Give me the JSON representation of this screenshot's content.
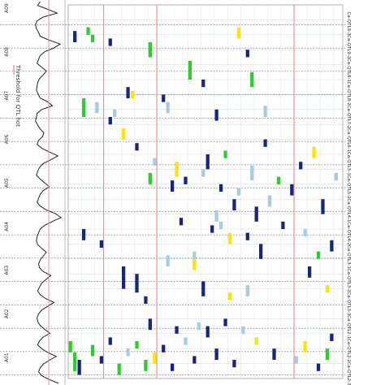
{
  "chart_data": {
    "type": "heatmap",
    "title": "",
    "legend": {
      "label": "Threshold for QTL hot",
      "color": "#e88a8a"
    },
    "chromosomes": [
      "A01",
      "A02",
      "A03",
      "A04",
      "A05",
      "A06",
      "A07",
      "A08",
      "A09"
    ],
    "qtl_clusters": [
      "Ca-QTL9-3",
      "Ca-QTL9-2",
      "Ca-QTL8-1",
      "Ca-QTL8-2",
      "Ca-QTL7-2",
      "Ca-QTL6-1",
      "Ca-QTL5-1",
      "Ca-QTL5-2",
      "Ca-QTL4-1",
      "Ca-QTL4-2",
      "Ca-QTL3-1",
      "Ca-QTL3-2",
      "Ca-QTL3-3",
      "Ca-QTL2-1",
      "Ca-QTL2-2",
      "Ca-QTL2-3"
    ],
    "threshold_columns": [
      8,
      20,
      51
    ],
    "colors": {
      "navy": "#1a237e",
      "green": "#2ecc2e",
      "yellow": "#ffe400",
      "lightblue": "#a9cbe0",
      "threshold": "#e88a8a",
      "grid": "#d6dde8",
      "cluster_line": "#555555",
      "curve": "#222222"
    },
    "density_profile": [
      0.3,
      0.22,
      0.55,
      0.85,
      0.4,
      0.2,
      0.15,
      0.18,
      0.25,
      0.3,
      0.6,
      0.95,
      0.75,
      0.45,
      0.3,
      0.25,
      0.2,
      0.35,
      0.5,
      0.4,
      0.28,
      0.22,
      0.2,
      0.18,
      0.24,
      0.3,
      0.55,
      0.7,
      0.35,
      0.2,
      0.18,
      0.15,
      0.22,
      0.3,
      0.42,
      0.38,
      0.25,
      0.2,
      0.35,
      0.6,
      0.88,
      0.65,
      0.4,
      0.28,
      0.22,
      0.18,
      0.3,
      0.45,
      0.6,
      0.4,
      0.3,
      0.25,
      0.2,
      0.3,
      0.5,
      0.8,
      0.98,
      0.7,
      0.45,
      0.3,
      0.25,
      0.2,
      0.18,
      0.22,
      0.35,
      0.5,
      0.4,
      0.3,
      0.25,
      0.28,
      0.4,
      0.65,
      0.5,
      0.35,
      0.28,
      0.22,
      0.3,
      0.48,
      0.75,
      0.55,
      0.35,
      0.25,
      0.2,
      0.22,
      0.3,
      0.45,
      0.62,
      0.4,
      0.28,
      0.22,
      0.35,
      0.55,
      0.82,
      0.6,
      0.4,
      0.3,
      0.25,
      0.35,
      0.6,
      0.9
    ],
    "bands": [
      {
        "row": 7,
        "col": 1,
        "len": 3,
        "color": "navy"
      },
      {
        "row": 6,
        "col": 4,
        "len": 2,
        "color": "green"
      },
      {
        "row": 8,
        "col": 5,
        "len": 2,
        "color": "green"
      },
      {
        "row": 9,
        "col": 9,
        "len": 2,
        "color": "navy"
      },
      {
        "row": 22,
        "col": 13,
        "len": 3,
        "color": "navy"
      },
      {
        "row": 23,
        "col": 14,
        "len": 2,
        "color": "yellow"
      },
      {
        "row": 10,
        "col": 18,
        "len": 4,
        "color": "green"
      },
      {
        "row": 24,
        "col": 21,
        "len": 2,
        "color": "navy"
      },
      {
        "row": 26,
        "col": 22,
        "len": 3,
        "color": "lightblue"
      },
      {
        "row": 15,
        "col": 27,
        "len": 5,
        "color": "green"
      },
      {
        "row": 20,
        "col": 30,
        "len": 2,
        "color": "navy"
      },
      {
        "row": 28,
        "col": 33,
        "len": 3,
        "color": "navy"
      },
      {
        "row": 6,
        "col": 38,
        "len": 3,
        "color": "yellow"
      },
      {
        "row": 12,
        "col": 40,
        "len": 2,
        "color": "navy"
      },
      {
        "row": 18,
        "col": 41,
        "len": 4,
        "color": "green"
      },
      {
        "row": 27,
        "col": 44,
        "len": 3,
        "color": "lightblue"
      },
      {
        "row": 60,
        "col": 3,
        "len": 3,
        "color": "navy"
      },
      {
        "row": 63,
        "col": 7,
        "len": 2,
        "color": "navy"
      },
      {
        "row": 70,
        "col": 12,
        "len": 6,
        "color": "navy"
      },
      {
        "row": 72,
        "col": 15,
        "len": 5,
        "color": "navy"
      },
      {
        "row": 78,
        "col": 17,
        "len": 2,
        "color": "navy"
      },
      {
        "row": 67,
        "col": 22,
        "len": 3,
        "color": "lightblue"
      },
      {
        "row": 66,
        "col": 28,
        "len": 4,
        "color": "lightblue"
      },
      {
        "row": 74,
        "col": 30,
        "len": 4,
        "color": "navy"
      },
      {
        "row": 58,
        "col": 34,
        "len": 2,
        "color": "lightblue"
      },
      {
        "row": 61,
        "col": 36,
        "len": 3,
        "color": "yellow"
      },
      {
        "row": 75,
        "col": 40,
        "len": 3,
        "color": "lightblue"
      },
      {
        "row": 64,
        "col": 43,
        "len": 4,
        "color": "navy"
      },
      {
        "row": 25,
        "col": 3,
        "len": 5,
        "color": "green"
      },
      {
        "row": 26,
        "col": 6,
        "len": 3,
        "color": "lightblue"
      },
      {
        "row": 30,
        "col": 9,
        "len": 2,
        "color": "navy"
      },
      {
        "row": 28,
        "col": 10,
        "len": 2,
        "color": "lightblue"
      },
      {
        "row": 33,
        "col": 12,
        "len": 3,
        "color": "yellow"
      },
      {
        "row": 37,
        "col": 15,
        "len": 2,
        "color": "navy"
      },
      {
        "row": 45,
        "col": 18,
        "len": 3,
        "color": "green"
      },
      {
        "row": 41,
        "col": 19,
        "len": 2,
        "color": "lightblue"
      },
      {
        "row": 47,
        "col": 23,
        "len": 3,
        "color": "navy"
      },
      {
        "row": 42,
        "col": 24,
        "len": 4,
        "color": "yellow"
      },
      {
        "row": 57,
        "col": 25,
        "len": 2,
        "color": "navy"
      },
      {
        "row": 46,
        "col": 26,
        "len": 2,
        "color": "navy"
      },
      {
        "row": 68,
        "col": 28,
        "len": 3,
        "color": "yellow"
      },
      {
        "row": 44,
        "col": 30,
        "len": 2,
        "color": "lightblue"
      },
      {
        "row": 40,
        "col": 31,
        "len": 4,
        "color": "navy"
      },
      {
        "row": 59,
        "col": 32,
        "len": 2,
        "color": "navy"
      },
      {
        "row": 55,
        "col": 33,
        "len": 3,
        "color": "lightblue"
      },
      {
        "row": 48,
        "col": 34,
        "len": 2,
        "color": "navy"
      },
      {
        "row": 39,
        "col": 35,
        "len": 2,
        "color": "green"
      },
      {
        "row": 77,
        "col": 36,
        "len": 2,
        "color": "yellow"
      },
      {
        "row": 52,
        "col": 37,
        "len": 3,
        "color": "navy"
      },
      {
        "row": 49,
        "col": 38,
        "len": 2,
        "color": "lightblue"
      },
      {
        "row": 61,
        "col": 40,
        "len": 2,
        "color": "navy"
      },
      {
        "row": 43,
        "col": 41,
        "len": 4,
        "color": "lightblue"
      },
      {
        "row": 54,
        "col": 42,
        "len": 4,
        "color": "navy"
      },
      {
        "row": 36,
        "col": 44,
        "len": 2,
        "color": "navy"
      },
      {
        "row": 51,
        "col": 45,
        "len": 3,
        "color": "lightblue"
      },
      {
        "row": 46,
        "col": 47,
        "len": 2,
        "color": "green"
      },
      {
        "row": 58,
        "col": 48,
        "len": 2,
        "color": "navy"
      },
      {
        "row": 48,
        "col": 50,
        "len": 3,
        "color": "navy"
      },
      {
        "row": 42,
        "col": 52,
        "len": 2,
        "color": "navy"
      },
      {
        "row": 60,
        "col": 53,
        "len": 2,
        "color": "lightblue"
      },
      {
        "row": 70,
        "col": 54,
        "len": 3,
        "color": "navy"
      },
      {
        "row": 38,
        "col": 55,
        "len": 3,
        "color": "yellow"
      },
      {
        "row": 66,
        "col": 56,
        "len": 2,
        "color": "green"
      },
      {
        "row": 52,
        "col": 57,
        "len": 4,
        "color": "navy"
      },
      {
        "row": 75,
        "col": 58,
        "len": 2,
        "color": "yellow"
      },
      {
        "row": 63,
        "col": 59,
        "len": 3,
        "color": "navy"
      },
      {
        "row": 45,
        "col": 60,
        "len": 2,
        "color": "lightblue"
      },
      {
        "row": 84,
        "col": 18,
        "len": 3,
        "color": "navy"
      },
      {
        "row": 86,
        "col": 24,
        "len": 2,
        "color": "navy"
      },
      {
        "row": 85,
        "col": 29,
        "len": 2,
        "color": "lightblue"
      },
      {
        "row": 86,
        "col": 31,
        "len": 3,
        "color": "navy"
      },
      {
        "row": 84,
        "col": 35,
        "len": 2,
        "color": "navy"
      },
      {
        "row": 86,
        "col": 39,
        "len": 2,
        "color": "lightblue"
      },
      {
        "row": 90,
        "col": 0,
        "len": 3,
        "color": "green"
      },
      {
        "row": 93,
        "col": 1,
        "len": 5,
        "color": "green"
      },
      {
        "row": 95,
        "col": 2,
        "len": 4,
        "color": "navy"
      },
      {
        "row": 91,
        "col": 5,
        "len": 3,
        "color": "green"
      },
      {
        "row": 94,
        "col": 7,
        "len": 2,
        "color": "navy"
      },
      {
        "row": 89,
        "col": 9,
        "len": 2,
        "color": "navy"
      },
      {
        "row": 96,
        "col": 11,
        "len": 3,
        "color": "green"
      },
      {
        "row": 92,
        "col": 13,
        "len": 2,
        "color": "lightblue"
      },
      {
        "row": 90,
        "col": 15,
        "len": 2,
        "color": "green"
      },
      {
        "row": 95,
        "col": 17,
        "len": 3,
        "color": "green"
      },
      {
        "row": 93,
        "col": 19,
        "len": 3,
        "color": "yellow"
      },
      {
        "row": 91,
        "col": 21,
        "len": 2,
        "color": "navy"
      },
      {
        "row": 96,
        "col": 23,
        "len": 2,
        "color": "navy"
      },
      {
        "row": 89,
        "col": 26,
        "len": 2,
        "color": "lightblue"
      },
      {
        "row": 94,
        "col": 28,
        "len": 2,
        "color": "navy"
      },
      {
        "row": 92,
        "col": 33,
        "len": 3,
        "color": "navy"
      },
      {
        "row": 95,
        "col": 37,
        "len": 2,
        "color": "navy"
      },
      {
        "row": 89,
        "col": 42,
        "len": 2,
        "color": "yellow"
      },
      {
        "row": 92,
        "col": 46,
        "len": 3,
        "color": "navy"
      },
      {
        "row": 94,
        "col": 51,
        "len": 2,
        "color": "lightblue"
      },
      {
        "row": 90,
        "col": 53,
        "len": 3,
        "color": "yellow"
      },
      {
        "row": 96,
        "col": 56,
        "len": 2,
        "color": "navy"
      },
      {
        "row": 92,
        "col": 58,
        "len": 3,
        "color": "green"
      },
      {
        "row": 88,
        "col": 59,
        "len": 2,
        "color": "navy"
      }
    ]
  }
}
